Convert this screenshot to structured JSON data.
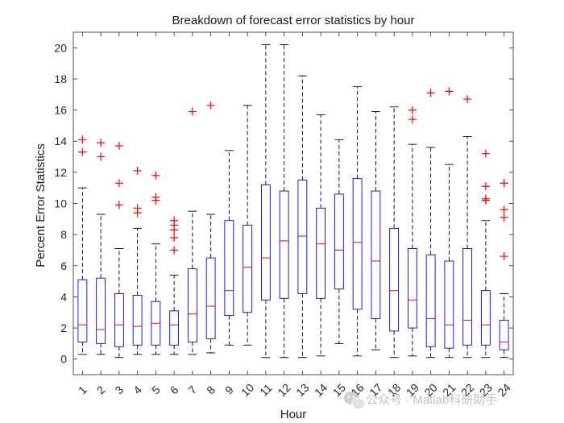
{
  "chart_data": {
    "type": "box",
    "title": "Breakdown of forecast error statistics by hour",
    "xlabel": "Hour",
    "ylabel": "Percent Error Statistics",
    "ylim": [
      -1,
      21
    ],
    "yticks": [
      0,
      2,
      4,
      6,
      8,
      10,
      12,
      14,
      16,
      18,
      20
    ],
    "categories": [
      "1",
      "2",
      "3",
      "4",
      "5",
      "6",
      "7",
      "8",
      "9",
      "10",
      "11",
      "12",
      "13",
      "14",
      "15",
      "16",
      "17",
      "18",
      "19",
      "20",
      "21",
      "22",
      "23",
      "24"
    ],
    "boxes": [
      {
        "whisker_low": 0.3,
        "q1": 1.1,
        "median": 2.2,
        "q3": 5.1,
        "whisker_high": 11.0,
        "outliers": [
          13.3,
          14.1
        ]
      },
      {
        "whisker_low": 0.3,
        "q1": 1.0,
        "median": 1.9,
        "q3": 5.2,
        "whisker_high": 9.3,
        "outliers": [
          13.0,
          13.9
        ]
      },
      {
        "whisker_low": 0.1,
        "q1": 0.8,
        "median": 2.2,
        "q3": 4.2,
        "whisker_high": 7.1,
        "outliers": [
          9.9,
          11.3,
          13.7
        ]
      },
      {
        "whisker_low": 0.3,
        "q1": 0.9,
        "median": 2.1,
        "q3": 4.1,
        "whisker_high": 8.4,
        "outliers": [
          9.4,
          9.7,
          12.1
        ]
      },
      {
        "whisker_low": 0.3,
        "q1": 0.9,
        "median": 2.3,
        "q3": 3.7,
        "whisker_high": 7.4,
        "outliers": [
          10.2,
          10.4,
          11.8
        ]
      },
      {
        "whisker_low": 0.3,
        "q1": 0.9,
        "median": 2.2,
        "q3": 3.1,
        "whisker_high": 5.4,
        "outliers": [
          7.0,
          7.8,
          8.3,
          8.6,
          8.9
        ]
      },
      {
        "whisker_low": 0.3,
        "q1": 1.1,
        "median": 2.9,
        "q3": 5.8,
        "whisker_high": 9.5,
        "outliers": [
          15.9
        ]
      },
      {
        "whisker_low": 0.4,
        "q1": 1.3,
        "median": 3.4,
        "q3": 6.5,
        "whisker_high": 9.3,
        "outliers": [
          16.3
        ]
      },
      {
        "whisker_low": 0.9,
        "q1": 2.8,
        "median": 4.4,
        "q3": 8.9,
        "whisker_high": 13.4,
        "outliers": []
      },
      {
        "whisker_low": 0.9,
        "q1": 3.0,
        "median": 5.9,
        "q3": 8.6,
        "whisker_high": 16.3,
        "outliers": []
      },
      {
        "whisker_low": 0.1,
        "q1": 3.8,
        "median": 6.5,
        "q3": 11.2,
        "whisker_high": 20.2,
        "outliers": []
      },
      {
        "whisker_low": 0.1,
        "q1": 3.9,
        "median": 7.6,
        "q3": 10.8,
        "whisker_high": 20.2,
        "outliers": []
      },
      {
        "whisker_low": 0.1,
        "q1": 4.2,
        "median": 7.9,
        "q3": 11.5,
        "whisker_high": 18.2,
        "outliers": []
      },
      {
        "whisker_low": 0.2,
        "q1": 3.9,
        "median": 7.4,
        "q3": 9.7,
        "whisker_high": 15.7,
        "outliers": []
      },
      {
        "whisker_low": 1.0,
        "q1": 4.5,
        "median": 7.0,
        "q3": 10.6,
        "whisker_high": 14.1,
        "outliers": []
      },
      {
        "whisker_low": 0.2,
        "q1": 3.2,
        "median": 7.5,
        "q3": 11.6,
        "whisker_high": 17.5,
        "outliers": []
      },
      {
        "whisker_low": 0.6,
        "q1": 2.6,
        "median": 6.3,
        "q3": 10.8,
        "whisker_high": 15.9,
        "outliers": []
      },
      {
        "whisker_low": 0.1,
        "q1": 1.8,
        "median": 4.4,
        "q3": 8.4,
        "whisker_high": 16.2,
        "outliers": []
      },
      {
        "whisker_low": 0.2,
        "q1": 2.0,
        "median": 3.8,
        "q3": 7.1,
        "whisker_high": 13.8,
        "outliers": [
          15.4,
          16.0
        ]
      },
      {
        "whisker_low": 0.1,
        "q1": 0.8,
        "median": 2.6,
        "q3": 6.7,
        "whisker_high": 13.6,
        "outliers": [
          17.1
        ]
      },
      {
        "whisker_low": 0.1,
        "q1": 0.7,
        "median": 2.2,
        "q3": 6.3,
        "whisker_high": 12.5,
        "outliers": [
          17.2
        ]
      },
      {
        "whisker_low": 0.1,
        "q1": 0.9,
        "median": 2.5,
        "q3": 7.1,
        "whisker_high": 14.3,
        "outliers": [
          16.7
        ]
      },
      {
        "whisker_low": 0.1,
        "q1": 0.9,
        "median": 2.2,
        "q3": 4.4,
        "whisker_high": 8.9,
        "outliers": [
          10.2,
          10.3,
          11.1,
          13.2
        ]
      },
      {
        "whisker_low": 0.1,
        "q1": 0.6,
        "median": 1.1,
        "q3": 2.5,
        "whisker_high": 4.2,
        "outliers": [
          6.6,
          9.1,
          9.6,
          11.3,
          11.3
        ]
      }
    ],
    "colors": {
      "box": "#0000ff",
      "median": "#ff0000",
      "whisker": "#000000",
      "outlier": "#ff0000",
      "axis": "#262626"
    },
    "grid": false
  },
  "watermark": {
    "text": "公众号 · Matlab科研助手",
    "icon": "wechat-icon"
  }
}
